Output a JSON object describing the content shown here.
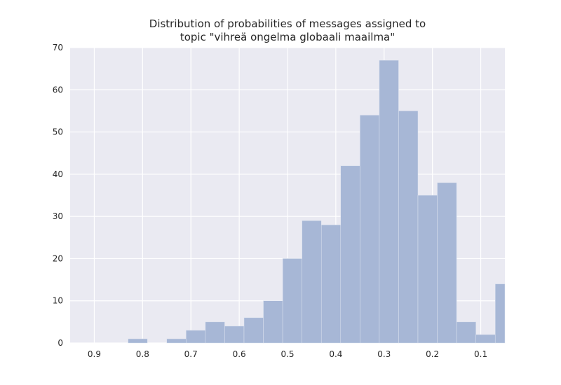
{
  "chart_data": {
    "type": "bar",
    "title_lines": [
      "Distribution of probabilities of messages assigned to",
      "topic \"vihreä ongelma globaali maailma\""
    ],
    "xlabel": "",
    "ylabel": "",
    "x_axis_reversed": true,
    "xlim": [
      0.95,
      0.05
    ],
    "ylim": [
      0,
      70
    ],
    "x_ticks": [
      0.9,
      0.8,
      0.7,
      0.6,
      0.5,
      0.4,
      0.3,
      0.2,
      0.1
    ],
    "x_tick_labels": [
      "0.9",
      "0.8",
      "0.7",
      "0.6",
      "0.5",
      "0.4",
      "0.3",
      "0.2",
      "0.1"
    ],
    "y_ticks": [
      0,
      10,
      20,
      30,
      40,
      50,
      60,
      70
    ],
    "y_tick_labels": [
      "0",
      "10",
      "20",
      "30",
      "40",
      "50",
      "60",
      "70"
    ],
    "grid": true,
    "colors": {
      "background": "#eaeaf2",
      "grid": "#ffffff",
      "bar": "#a7b7d6",
      "bar_edge": "#dde3ef"
    },
    "bins": [
      {
        "x_start": 0.83,
        "x_end": 0.79,
        "count": 1
      },
      {
        "x_start": 0.75,
        "x_end": 0.71,
        "count": 1
      },
      {
        "x_start": 0.71,
        "x_end": 0.67,
        "count": 3
      },
      {
        "x_start": 0.67,
        "x_end": 0.63,
        "count": 5
      },
      {
        "x_start": 0.63,
        "x_end": 0.59,
        "count": 4
      },
      {
        "x_start": 0.59,
        "x_end": 0.55,
        "count": 6
      },
      {
        "x_start": 0.55,
        "x_end": 0.51,
        "count": 10
      },
      {
        "x_start": 0.51,
        "x_end": 0.47,
        "count": 20
      },
      {
        "x_start": 0.47,
        "x_end": 0.43,
        "count": 29
      },
      {
        "x_start": 0.43,
        "x_end": 0.39,
        "count": 28
      },
      {
        "x_start": 0.39,
        "x_end": 0.35,
        "count": 42
      },
      {
        "x_start": 0.35,
        "x_end": 0.31,
        "count": 54
      },
      {
        "x_start": 0.31,
        "x_end": 0.27,
        "count": 67
      },
      {
        "x_start": 0.27,
        "x_end": 0.23,
        "count": 55
      },
      {
        "x_start": 0.23,
        "x_end": 0.19,
        "count": 35
      },
      {
        "x_start": 0.19,
        "x_end": 0.15,
        "count": 38
      },
      {
        "x_start": 0.15,
        "x_end": 0.11,
        "count": 5
      },
      {
        "x_start": 0.11,
        "x_end": 0.07,
        "count": 2
      },
      {
        "x_start": 0.07,
        "x_end": 0.03,
        "count": 14
      }
    ]
  }
}
